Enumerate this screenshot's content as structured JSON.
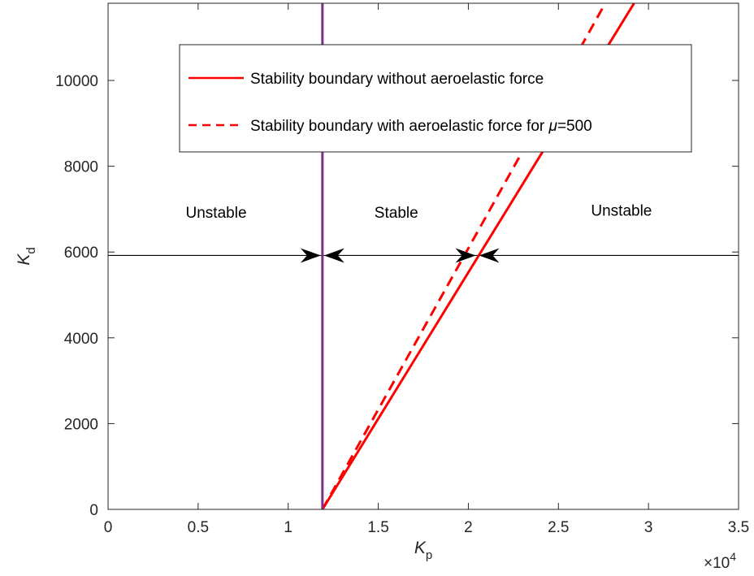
{
  "chart_data": {
    "type": "line",
    "xlabel": "K",
    "xlabel_sub": "p",
    "ylabel": "K",
    "ylabel_sub": "d",
    "x_exponent_label": "×10",
    "x_exponent_power": "4",
    "xlim": [
      0,
      3.5
    ],
    "ylim": [
      0,
      11800
    ],
    "x_ticks": [
      0,
      0.5,
      1,
      1.5,
      2,
      2.5,
      3,
      3.5
    ],
    "x_tick_labels": [
      "0",
      "0.5",
      "1",
      "1.5",
      "2",
      "2.5",
      "3",
      "3.5"
    ],
    "y_ticks": [
      0,
      2000,
      4000,
      6000,
      8000,
      10000
    ],
    "y_tick_labels": [
      "0",
      "2000",
      "4000",
      "6000",
      "8000",
      "10000"
    ],
    "grid": false,
    "legend_position": "top-right",
    "series": [
      {
        "name": "Stability boundary without aeroelastic force",
        "color": "#ff0000",
        "style": "solid",
        "x": [
          1.19,
          2.92
        ],
        "y": [
          0,
          11800
        ]
      },
      {
        "name": "Stability boundary with aeroelastic force for μ=500",
        "legend_prefix": "Stability boundary with aeroelastic force for ",
        "legend_symbol": "μ",
        "legend_suffix": "=500",
        "color": "#ff0000",
        "style": "dashed",
        "x": [
          1.19,
          2.76
        ],
        "y": [
          0,
          11800
        ]
      },
      {
        "color": "#7e2f8e",
        "style": "solid",
        "x": [
          1.19,
          1.19
        ],
        "y": [
          0,
          11800
        ]
      }
    ],
    "horizontal_line": {
      "y": 5920,
      "color": "#000000"
    },
    "arrows": [
      {
        "x": 1.19,
        "y": 5920,
        "direction": "right"
      },
      {
        "x": 1.19,
        "y": 5920,
        "direction": "left"
      },
      {
        "x": 2.05,
        "y": 5920,
        "direction": "right"
      },
      {
        "x": 2.05,
        "y": 5920,
        "direction": "left"
      }
    ],
    "annotations": [
      {
        "text": "Unstable",
        "x": 0.6,
        "y": 6800
      },
      {
        "text": "Stable",
        "x": 1.6,
        "y": 6800
      },
      {
        "text": "Unstable",
        "x": 2.85,
        "y": 6850
      }
    ]
  }
}
